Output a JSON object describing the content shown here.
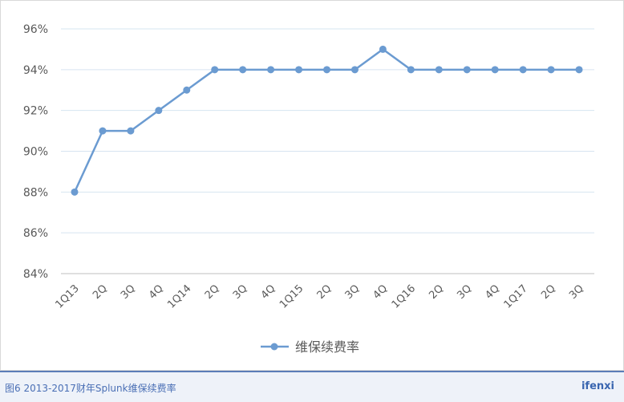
{
  "chart_data": {
    "type": "line",
    "title": "",
    "xlabel": "",
    "ylabel": "",
    "categories": [
      "1Q13",
      "2Q",
      "3Q",
      "4Q",
      "1Q14",
      "2Q",
      "3Q",
      "4Q",
      "1Q15",
      "2Q",
      "3Q",
      "4Q",
      "1Q16",
      "2Q",
      "3Q",
      "4Q",
      "1Q17",
      "2Q",
      "3Q"
    ],
    "series": [
      {
        "name": "维保续费率",
        "values": [
          88,
          91,
          91,
          92,
          93,
          94,
          94,
          94,
          94,
          94,
          94,
          95,
          94,
          94,
          94,
          94,
          94,
          94,
          94
        ],
        "color": "#6b9bd1"
      }
    ],
    "y_ticks": [
      "84%",
      "86%",
      "88%",
      "90%",
      "92%",
      "94%",
      "96%"
    ],
    "ylim": [
      84,
      96
    ],
    "grid": true,
    "legend_position": "bottom"
  },
  "footer": {
    "caption": "图6 2013-2017财年Splunk维保续费率",
    "brand": "ifenxi"
  }
}
